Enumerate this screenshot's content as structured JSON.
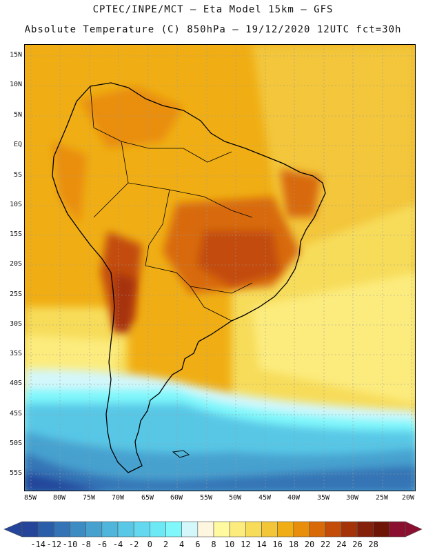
{
  "header": {
    "line1": "CPTEC/INPE/MCT –  Eta Model 15km – GFS",
    "line2": "Absolute Temperature (C) 850hPa – 19/12/2020 12UTC fct=30h"
  },
  "map": {
    "region": "South America",
    "lat_labels": [
      "15N",
      "10N",
      "5N",
      "EQ",
      "5S",
      "10S",
      "15S",
      "20S",
      "25S",
      "30S",
      "35S",
      "40S",
      "45S",
      "50S",
      "55S"
    ],
    "lon_labels": [
      "85W",
      "80W",
      "75W",
      "70W",
      "65W",
      "60W",
      "55W",
      "50W",
      "45W",
      "40W",
      "35W",
      "30W",
      "25W",
      "20W"
    ]
  },
  "colorbar": {
    "ticks": [
      "-14",
      "-12",
      "-10",
      "-8",
      "-6",
      "-4",
      "-2",
      "0",
      "2",
      "4",
      "6",
      "8",
      "10",
      "12",
      "14",
      "16",
      "18",
      "20",
      "22",
      "24",
      "26",
      "28"
    ],
    "colors": [
      "#24459a",
      "#2b5ea8",
      "#3474b6",
      "#3d8bc3",
      "#46a1cf",
      "#4fb5db",
      "#59c7e6",
      "#63d8ee",
      "#6de8f5",
      "#7ff7fb",
      "#d3f7fb",
      "#fff6e0",
      "#fffaa0",
      "#fcec7e",
      "#f7dc5a",
      "#f3c63a",
      "#f0ae14",
      "#e98e0a",
      "#d86a09",
      "#c24c08",
      "#a5330a",
      "#85200b",
      "#6e1508",
      "#8a0f30"
    ],
    "under_color": "#24459a",
    "over_color": "#8a0f30"
  }
}
